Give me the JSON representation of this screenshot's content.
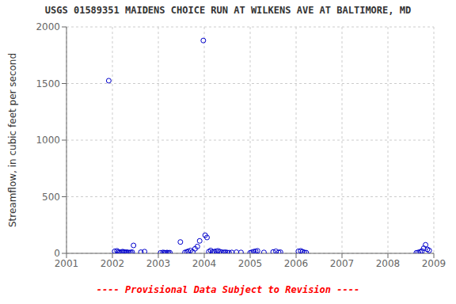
{
  "chart_data": {
    "type": "scatter",
    "title": "USGS 01589351 MAIDENS CHOICE RUN AT WILKENS AVE AT BALTIMORE, MD",
    "y_label": "Streamflow, in cubic feet per second",
    "annotations": [
      {
        "text": "---- Provisional Data Subject to Revision ----",
        "color": "#ff0000"
      }
    ],
    "x": [
      2001.92,
      2002.05,
      2002.1,
      2002.13,
      2002.16,
      2002.19,
      2002.22,
      2002.25,
      2002.28,
      2002.31,
      2002.34,
      2002.37,
      2002.4,
      2002.43,
      2002.46,
      2002.62,
      2002.7,
      2003.05,
      2003.1,
      2003.13,
      2003.16,
      2003.19,
      2003.22,
      2003.25,
      2003.48,
      2003.58,
      2003.62,
      2003.65,
      2003.7,
      2003.75,
      2003.8,
      2003.85,
      2003.9,
      2003.98,
      2004.02,
      2004.06,
      2004.1,
      2004.14,
      2004.18,
      2004.22,
      2004.26,
      2004.3,
      2004.34,
      2004.38,
      2004.42,
      2004.46,
      2004.5,
      2004.54,
      2004.6,
      2004.7,
      2004.8,
      2005.0,
      2005.04,
      2005.08,
      2005.12,
      2005.16,
      2005.3,
      2005.5,
      2005.56,
      2005.62,
      2005.66,
      2006.05,
      2006.1,
      2006.14,
      2006.18,
      2006.22,
      2008.62,
      2008.66,
      2008.7,
      2008.74,
      2008.78,
      2008.82,
      2008.86,
      2008.9
    ],
    "values": [
      1525,
      18,
      22,
      12,
      8,
      10,
      15,
      12,
      8,
      10,
      8,
      6,
      8,
      10,
      70,
      10,
      15,
      5,
      8,
      6,
      5,
      7,
      5,
      6,
      100,
      8,
      12,
      18,
      25,
      12,
      40,
      60,
      110,
      1880,
      160,
      140,
      15,
      25,
      12,
      15,
      18,
      22,
      15,
      10,
      8,
      10,
      7,
      6,
      8,
      10,
      8,
      5,
      10,
      15,
      18,
      22,
      8,
      12,
      18,
      8,
      10,
      18,
      22,
      14,
      8,
      6,
      5,
      8,
      12,
      20,
      45,
      75,
      35,
      25
    ],
    "color": "#0000cc",
    "marker": "circle",
    "xlim": [
      2001,
      2009
    ],
    "ylim": [
      0,
      2000
    ],
    "xticks": [
      2001,
      2002,
      2003,
      2004,
      2005,
      2006,
      2007,
      2008,
      2009
    ],
    "yticks": [
      0,
      500,
      1000,
      1500,
      2000
    ],
    "grid": true
  }
}
